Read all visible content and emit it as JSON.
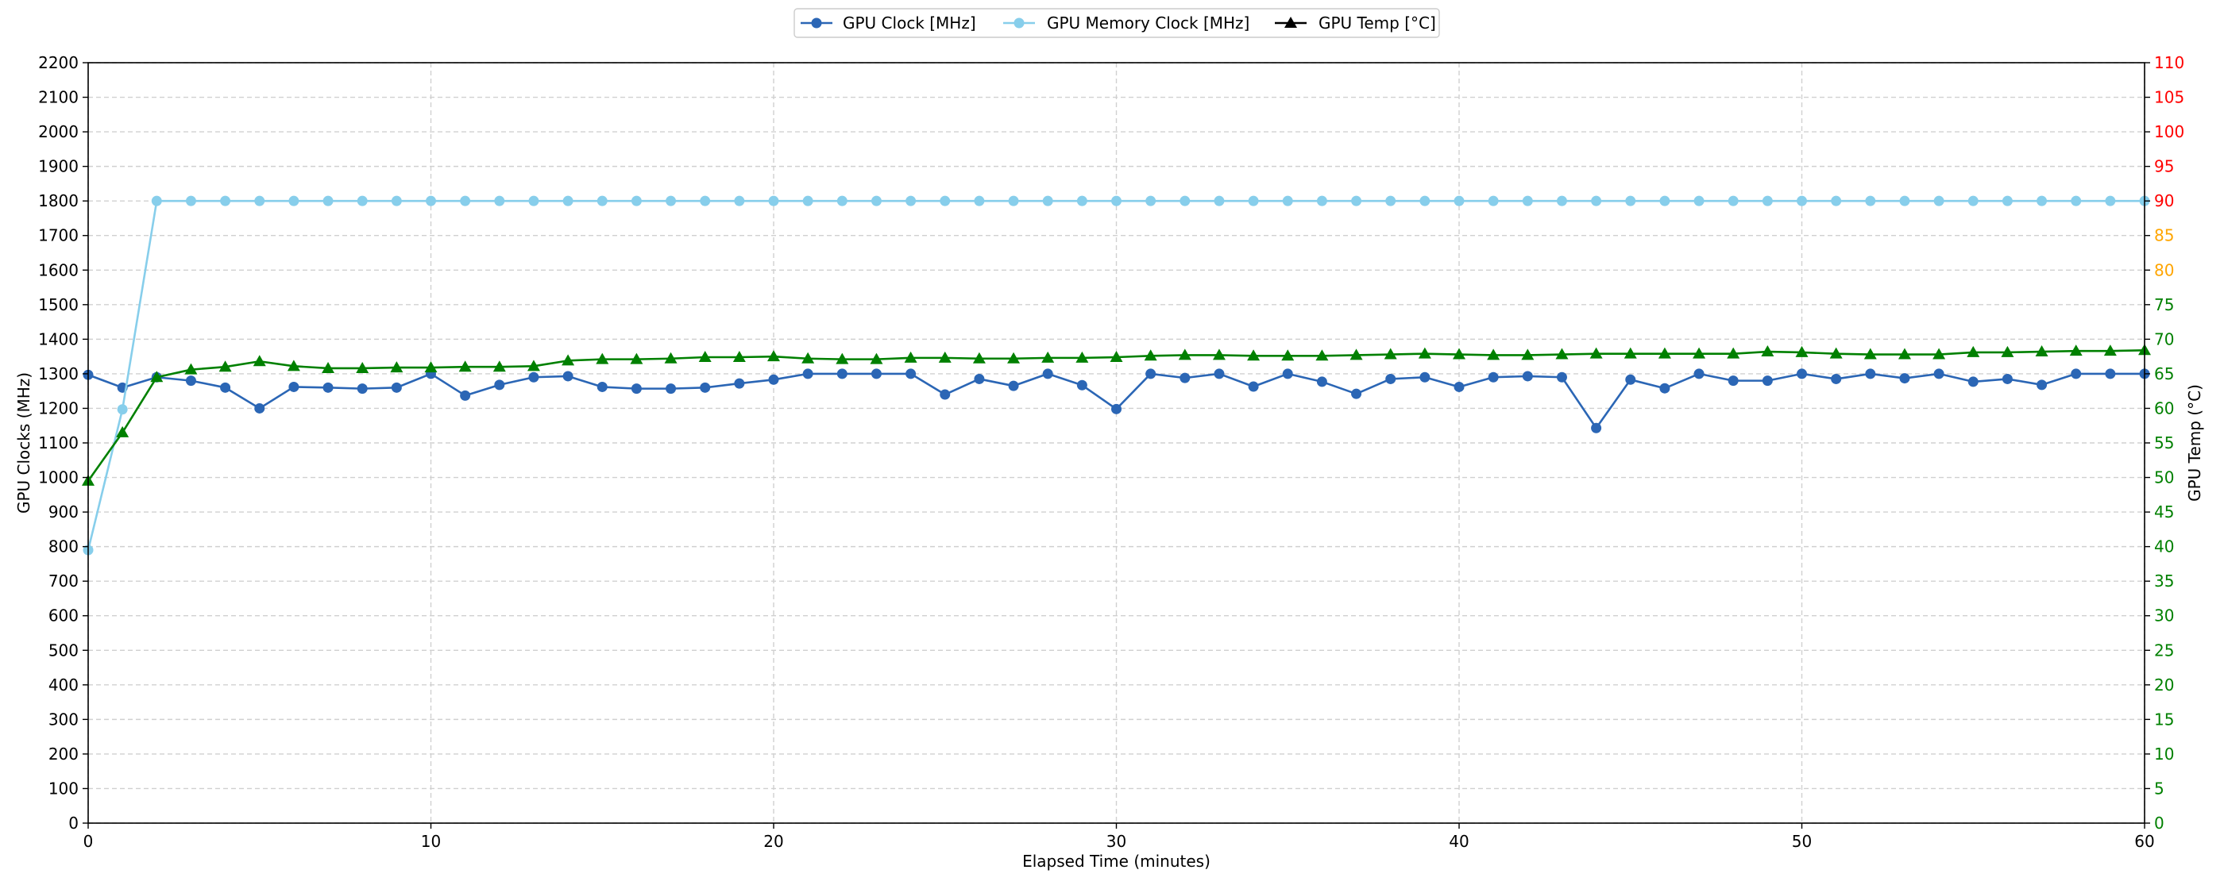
{
  "chart_data": {
    "type": "line",
    "xlabel": "Elapsed Time (minutes)",
    "ylabel": "GPU Clocks (MHz)",
    "y2label": "GPU Temp (°C)",
    "xlim": [
      0,
      60
    ],
    "ylim": [
      0,
      2200
    ],
    "y2lim": [
      0,
      110
    ],
    "x_ticks": [
      0,
      10,
      20,
      30,
      40,
      50,
      60
    ],
    "y_ticks": [
      0,
      100,
      200,
      300,
      400,
      500,
      600,
      700,
      800,
      900,
      1000,
      1100,
      1200,
      1300,
      1400,
      1500,
      1600,
      1700,
      1800,
      1900,
      2000,
      2100,
      2200
    ],
    "y2_ticks": [
      0,
      5,
      10,
      15,
      20,
      25,
      30,
      35,
      40,
      45,
      50,
      55,
      60,
      65,
      70,
      75,
      80,
      85,
      90,
      95,
      100,
      105,
      110
    ],
    "y2_tick_colors": {
      "green_max": 75,
      "orange_max": 85,
      "green": "#008000",
      "orange": "#ffa500",
      "red": "#ff0000"
    },
    "grid": true,
    "legend_position": "top-center",
    "x": [
      0,
      1,
      2,
      3,
      4,
      5,
      6,
      7,
      8,
      9,
      10,
      11,
      12,
      13,
      14,
      15,
      16,
      17,
      18,
      19,
      20,
      21,
      22,
      23,
      24,
      25,
      26,
      27,
      28,
      29,
      30,
      31,
      32,
      33,
      34,
      35,
      36,
      37,
      38,
      39,
      40,
      41,
      42,
      43,
      44,
      45,
      46,
      47,
      48,
      49,
      50,
      51,
      52,
      53,
      54,
      55,
      56,
      57,
      58,
      59,
      60
    ],
    "series": [
      {
        "name": "GPU Clock [MHz]",
        "axis": "left",
        "color": "#2b66b5",
        "marker": "circle",
        "values": [
          1297,
          1260,
          1290,
          1280,
          1260,
          1200,
          1262,
          1260,
          1257,
          1260,
          1300,
          1237,
          1268,
          1290,
          1293,
          1262,
          1257,
          1257,
          1260,
          1272,
          1283,
          1300,
          1300,
          1300,
          1300,
          1240,
          1285,
          1265,
          1300,
          1267,
          1198,
          1300,
          1288,
          1300,
          1263,
          1300,
          1277,
          1242,
          1285,
          1290,
          1262,
          1290,
          1293,
          1290,
          1143,
          1283,
          1258,
          1300,
          1280,
          1280,
          1300,
          1285,
          1300,
          1287,
          1300,
          1277,
          1285,
          1268,
          1300,
          1300,
          1300
        ]
      },
      {
        "name": "GPU Memory Clock [MHz]",
        "axis": "left",
        "color": "#87ceeb",
        "marker": "circle",
        "values": [
          790,
          1197,
          1800,
          1800,
          1800,
          1800,
          1800,
          1800,
          1800,
          1800,
          1800,
          1800,
          1800,
          1800,
          1800,
          1800,
          1800,
          1800,
          1800,
          1800,
          1800,
          1800,
          1800,
          1800,
          1800,
          1800,
          1800,
          1800,
          1800,
          1800,
          1800,
          1800,
          1800,
          1800,
          1800,
          1800,
          1800,
          1800,
          1800,
          1800,
          1800,
          1800,
          1800,
          1800,
          1800,
          1800,
          1800,
          1800,
          1800,
          1800,
          1800,
          1800,
          1800,
          1800,
          1800,
          1800,
          1800,
          1800,
          1800,
          1800,
          1800
        ]
      },
      {
        "name": "GPU Temp [°C]",
        "axis": "right",
        "color": "#008000",
        "legend_color": "#000000",
        "marker": "triangle",
        "values": [
          49.5,
          56.5,
          64.5,
          65.6,
          66,
          66.8,
          66.1,
          65.8,
          65.8,
          65.9,
          65.9,
          66,
          66,
          66.1,
          66.9,
          67.1,
          67.1,
          67.2,
          67.4,
          67.4,
          67.5,
          67.2,
          67.1,
          67.1,
          67.3,
          67.3,
          67.2,
          67.2,
          67.3,
          67.3,
          67.4,
          67.6,
          67.7,
          67.7,
          67.6,
          67.6,
          67.6,
          67.7,
          67.8,
          67.9,
          67.8,
          67.7,
          67.7,
          67.8,
          67.9,
          67.9,
          67.9,
          67.9,
          67.9,
          68.2,
          68.1,
          67.9,
          67.8,
          67.8,
          67.8,
          68.1,
          68.1,
          68.2,
          68.3,
          68.3,
          68.4
        ]
      }
    ]
  }
}
